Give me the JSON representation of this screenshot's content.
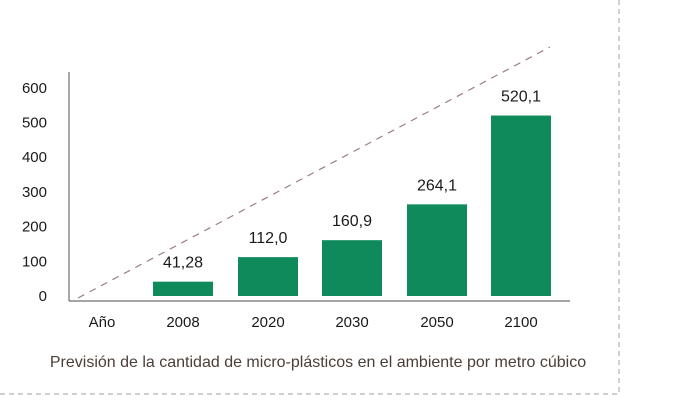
{
  "chart_data": {
    "type": "bar",
    "x_axis_label": "Año",
    "categories": [
      "2008",
      "2020",
      "2030",
      "2050",
      "2100"
    ],
    "values": [
      41.28,
      112.0,
      160.9,
      264.1,
      520.1
    ],
    "value_labels": [
      "41,28",
      "112,0",
      "160,9",
      "264,1",
      "520,1"
    ],
    "yticks": [
      "0",
      "100",
      "200",
      "300",
      "400",
      "500",
      "600"
    ],
    "ylim": [
      0,
      600
    ],
    "caption": "Previsión de la cantidad de micro-plásticos en el ambiente por metro cúbico",
    "bar_color": "#0f8a5b",
    "axis_color": "#6f6f6f",
    "trend_line_color": "#9b7f7f",
    "grid": false
  }
}
